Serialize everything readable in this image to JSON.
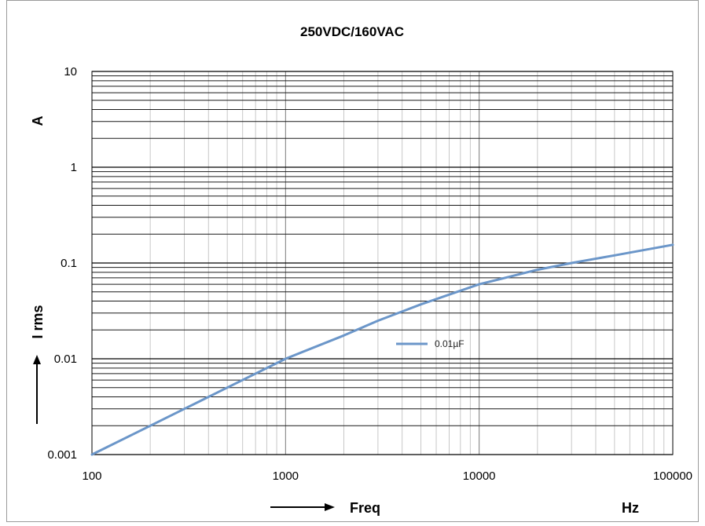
{
  "chart_data": {
    "type": "line",
    "title": "250VDC/160VAC",
    "x_scale": "log",
    "y_scale": "log",
    "xlim": [
      100,
      100000
    ],
    "ylim": [
      0.001,
      10
    ],
    "x_ticks": [
      "100",
      "1000",
      "10000",
      "100000"
    ],
    "y_ticks": [
      "0.001",
      "0.01",
      "0.1",
      "1",
      "10"
    ],
    "xlabel": "Freq",
    "xunit": "Hz",
    "ylabel": "I rms",
    "yunit": "A",
    "grid": true,
    "legend_position": "center",
    "series": [
      {
        "name": "0.01µF",
        "color": "#6b96c9",
        "x": [
          100,
          200,
          300,
          500,
          1000,
          2000,
          3000,
          5000,
          10000,
          20000,
          30000,
          50000,
          100000
        ],
        "y": [
          0.001,
          0.002,
          0.003,
          0.005,
          0.01,
          0.0175,
          0.025,
          0.037,
          0.06,
          0.085,
          0.1,
          0.12,
          0.155
        ]
      }
    ]
  }
}
